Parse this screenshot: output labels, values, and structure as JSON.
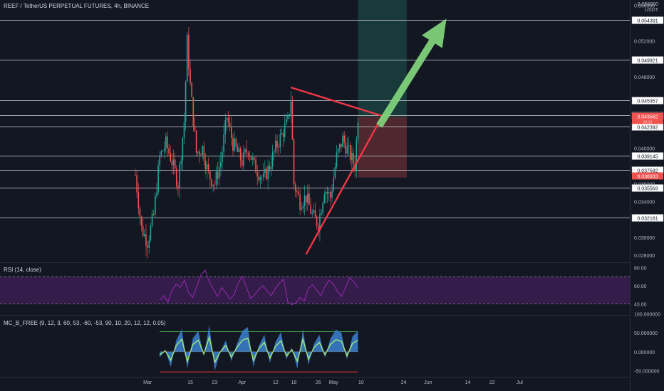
{
  "header": {
    "title": "REEF / TetherUS PERPETUAL FUTURES, 4h, BINANCE",
    "price_scale_unit": "USDT",
    "price_scale_top_value": "0.056000"
  },
  "panes": {
    "rsi_label": "RSI (14, close)",
    "mc_label": "MC_B_FREE (9, 12, 3, 60, 53, -60, -53, 90, 10, 20, 12, 12, 0.05)"
  },
  "colors": {
    "background": "#131722",
    "up_candle": "#26a69a",
    "down_candle": "#ef5350",
    "level_line": "#d1d4dc",
    "triangle": "#f23645",
    "arrow": "#7ed07a",
    "rsi": "#9c27b0",
    "rsi_band": "#3b1f52",
    "profit_zone": "#1b4743",
    "loss_zone": "#5a2a30",
    "wave_fill": "#3a7bc8",
    "wave_light": "#9be37e"
  },
  "chart_data": [
    {
      "type": "candlestick",
      "title": "REEF / TetherUS PERPETUAL FUTURES, 4h, BINANCE",
      "ylim": [
        0.0272,
        0.0566
      ],
      "x_tick_labels": [
        "Mar",
        "15",
        "23",
        "Apr",
        "12",
        "18",
        "26",
        "May",
        "10",
        "24",
        "Jun",
        "14",
        "22",
        "Jul"
      ],
      "y_tick_labels": [
        "0.028000",
        "0.030000",
        "0.034000",
        "0.036000",
        "0.040000",
        "0.048000",
        "0.052000",
        "0.056000"
      ],
      "horizontal_levels": [
        {
          "value": 0.054391,
          "label": "0.054391",
          "tag": "white"
        },
        {
          "value": 0.049921,
          "label": "0.049921",
          "tag": "white"
        },
        {
          "value": 0.045357,
          "label": "0.045357",
          "tag": "white"
        },
        {
          "value": 0.04371,
          "label": "0.043710",
          "tag": "dark"
        },
        {
          "value": 0.042392,
          "label": "0.042392",
          "tag": "white"
        },
        {
          "value": 0.039145,
          "label": "0.039145",
          "tag": "white"
        },
        {
          "value": 0.037592,
          "label": "0.037592",
          "tag": "white"
        },
        {
          "value": 0.035569,
          "label": "0.035569",
          "tag": "white"
        },
        {
          "value": 0.032181,
          "label": "0.032181",
          "tag": "white"
        }
      ],
      "price_tags": [
        {
          "value": 0.043582,
          "label": "0.043582",
          "sub": "03:19",
          "tag": "red"
        },
        {
          "value": 0.036933,
          "label": "0.036933",
          "tag": "red"
        }
      ],
      "triangle": [
        {
          "date": "Apr 17",
          "price": 0.0468
        },
        {
          "date": "May 17",
          "price": 0.0436
        },
        {
          "date": "Apr 22",
          "price": 0.0281
        }
      ],
      "arrow": {
        "from": {
          "date": "May 16",
          "price": 0.0425
        },
        "to": {
          "date": "Jun 7",
          "price": 0.0545
        }
      },
      "position": {
        "start": "May 9",
        "end": "May 25",
        "top": 0.0566,
        "entry": 0.0435,
        "stop": 0.0367
      },
      "price_path": [
        {
          "date": "Feb 25",
          "price": 0.037
        },
        {
          "date": "Feb 27",
          "price": 0.031
        },
        {
          "date": "Mar 1",
          "price": 0.0295
        },
        {
          "date": "Mar 3",
          "price": 0.0325
        },
        {
          "date": "Mar 5",
          "price": 0.039
        },
        {
          "date": "Mar 7",
          "price": 0.0405
        },
        {
          "date": "Mar 9",
          "price": 0.0385
        },
        {
          "date": "Mar 11",
          "price": 0.036
        },
        {
          "date": "Mar 13",
          "price": 0.043
        },
        {
          "date": "Mar 14",
          "price": 0.052
        },
        {
          "date": "Mar 15",
          "price": 0.047
        },
        {
          "date": "Mar 17",
          "price": 0.0395
        },
        {
          "date": "Mar 19",
          "price": 0.04
        },
        {
          "date": "Mar 21",
          "price": 0.037
        },
        {
          "date": "Mar 23",
          "price": 0.036
        },
        {
          "date": "Mar 25",
          "price": 0.0385
        },
        {
          "date": "Mar 27",
          "price": 0.0435
        },
        {
          "date": "Mar 29",
          "price": 0.0405
        },
        {
          "date": "Apr 1",
          "price": 0.0385
        },
        {
          "date": "Apr 3",
          "price": 0.04
        },
        {
          "date": "Apr 5",
          "price": 0.038
        },
        {
          "date": "Apr 8",
          "price": 0.0365
        },
        {
          "date": "Apr 10",
          "price": 0.038
        },
        {
          "date": "Apr 12",
          "price": 0.04
        },
        {
          "date": "Apr 14",
          "price": 0.0415
        },
        {
          "date": "Apr 16",
          "price": 0.043
        },
        {
          "date": "Apr 17",
          "price": 0.0455
        },
        {
          "date": "Apr 18",
          "price": 0.036
        },
        {
          "date": "Apr 20",
          "price": 0.034
        },
        {
          "date": "Apr 22",
          "price": 0.0345
        },
        {
          "date": "Apr 24",
          "price": 0.0325
        },
        {
          "date": "Apr 26",
          "price": 0.0315
        },
        {
          "date": "Apr 28",
          "price": 0.0355
        },
        {
          "date": "Apr 30",
          "price": 0.0345
        },
        {
          "date": "May 2",
          "price": 0.039
        },
        {
          "date": "May 4",
          "price": 0.041
        },
        {
          "date": "May 6",
          "price": 0.0395
        },
        {
          "date": "May 8",
          "price": 0.038
        },
        {
          "date": "May 9",
          "price": 0.0436
        }
      ]
    },
    {
      "type": "line",
      "title": "RSI (14, close)",
      "ylim": [
        30,
        85
      ],
      "y_tick_labels": [
        "80.00",
        "60.00",
        "40.00"
      ],
      "band": [
        40,
        70
      ],
      "values": [
        44,
        49,
        42,
        55,
        62,
        58,
        66,
        52,
        47,
        60,
        72,
        77,
        64,
        56,
        48,
        58,
        52,
        45,
        50,
        63,
        70,
        58,
        46,
        50,
        56,
        60,
        54,
        49,
        57,
        63,
        67,
        42,
        39,
        41,
        47,
        43,
        57,
        61,
        55,
        49,
        59,
        66,
        62,
        54,
        48,
        58,
        69,
        64,
        58
      ]
    },
    {
      "type": "area",
      "title": "MC_B_FREE (9, 12, 3, 60, 53, -60, -53, 90, 10, 20, 12, 12, 0.05)",
      "ylim": [
        -62,
        95
      ],
      "y_tick_labels": [
        "100.000000",
        "50.000000",
        "0.000000",
        "-50.000000"
      ],
      "levels": [
        53,
        -53
      ],
      "values": [
        -15,
        5,
        -40,
        30,
        60,
        -45,
        35,
        55,
        -10,
        70,
        -50,
        0,
        30,
        -25,
        20,
        55,
        65,
        -40,
        15,
        45,
        -30,
        25,
        52,
        -20,
        10,
        -45,
        60,
        -35,
        20,
        45,
        -15,
        35,
        58,
        50,
        -20,
        40,
        55
      ]
    }
  ]
}
